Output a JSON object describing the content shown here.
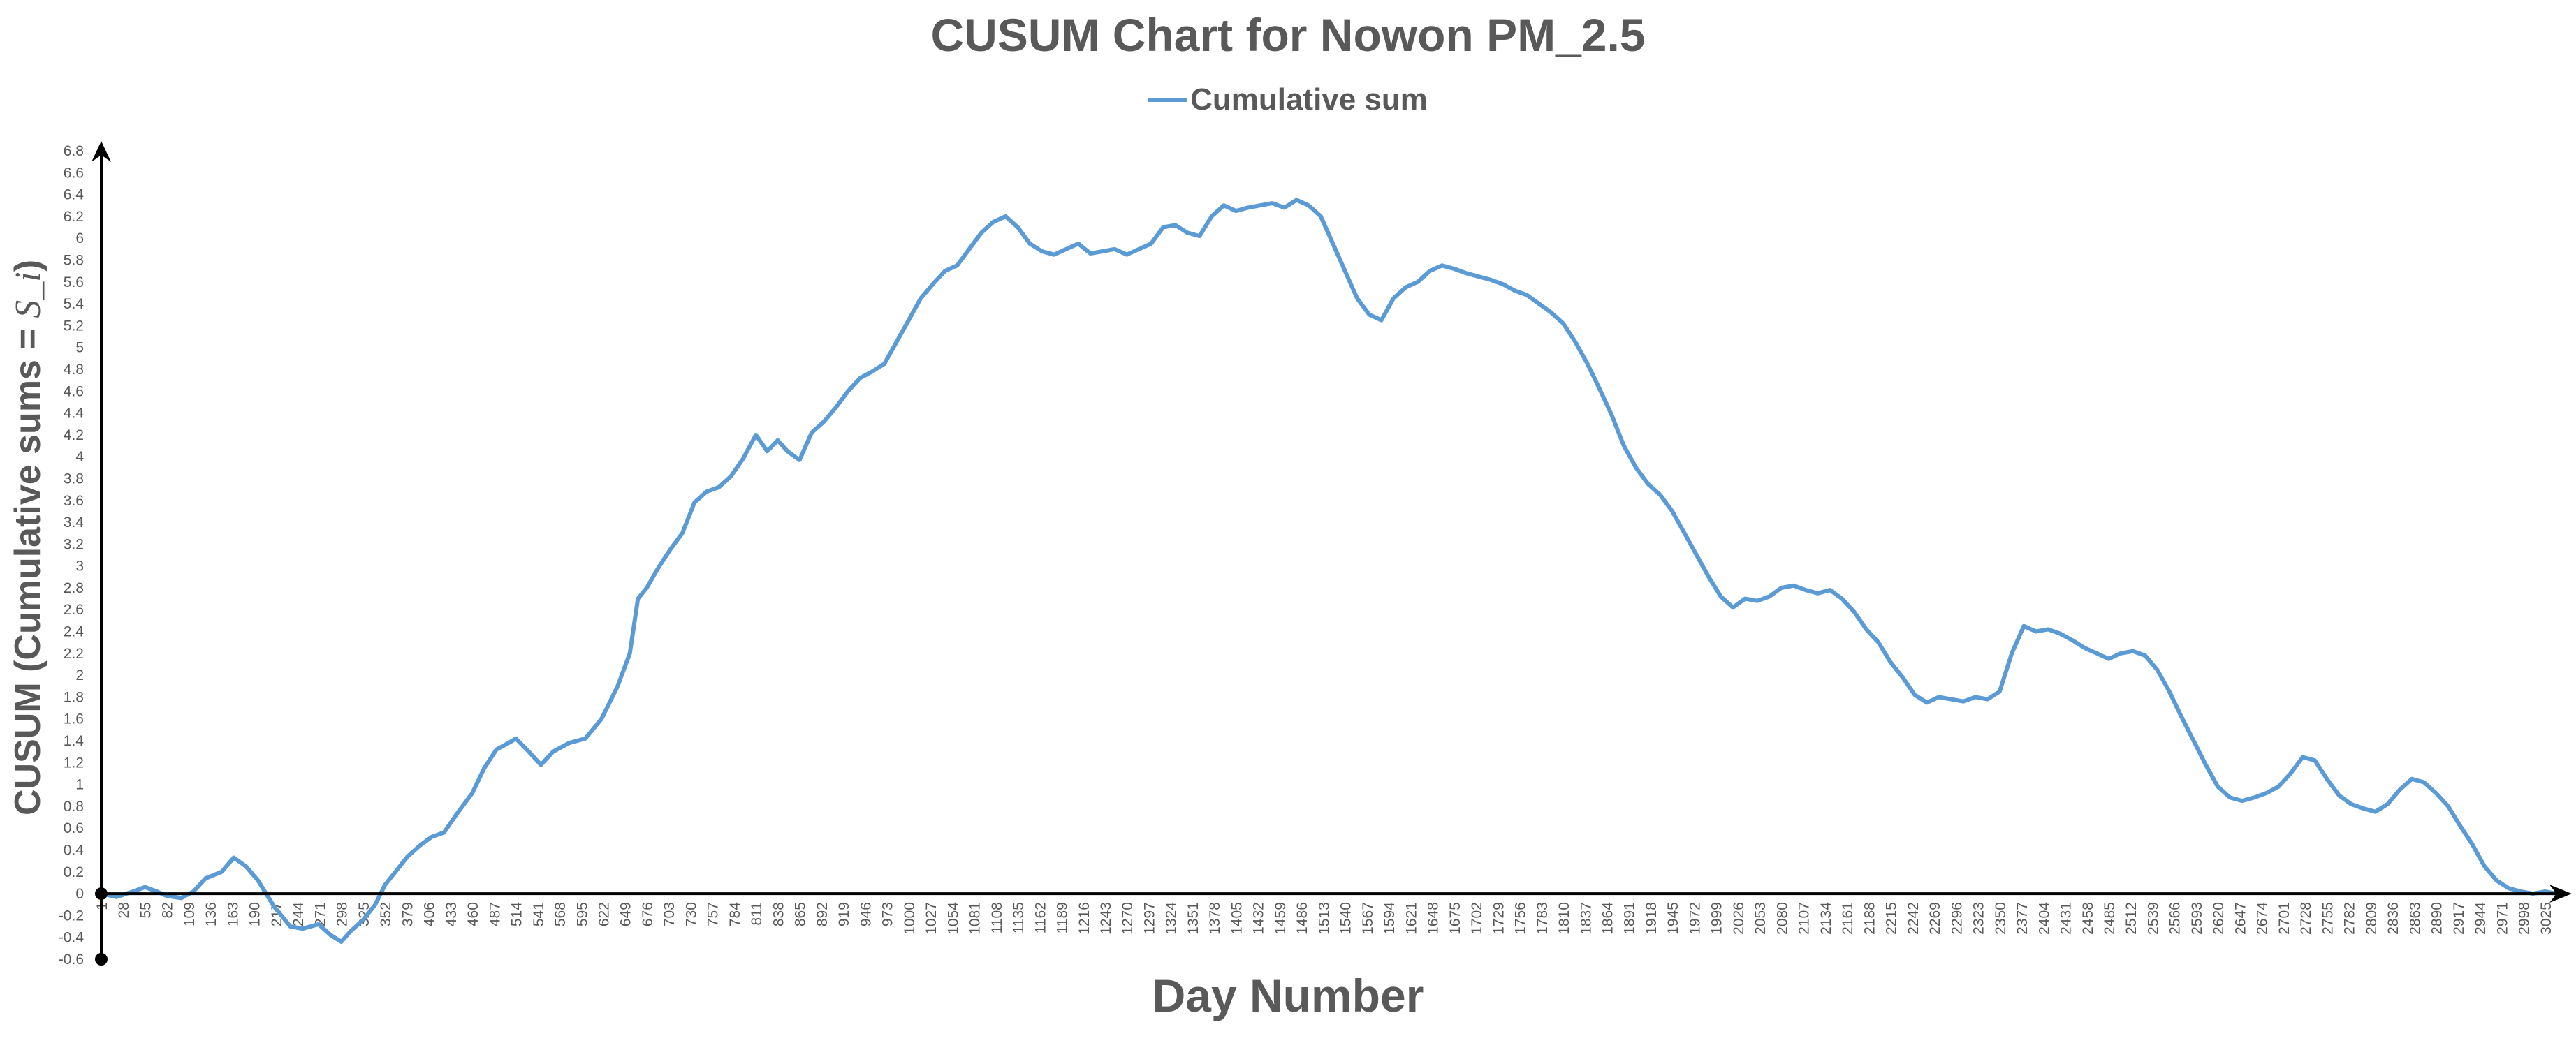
{
  "chart_data": {
    "type": "line",
    "title": "CUSUM Chart for Nowon PM_2.5",
    "xlabel": "Day Number",
    "ylabel": "CUSUM (Cumulative sums = S_i)",
    "ylabel_parts": {
      "prefix": "CUSUM (Cumulative sums = ",
      "var": "S",
      "sep": "_",
      "sub": "i",
      "suffix": ")"
    },
    "legend": "top-center",
    "grid": false,
    "xlim": [
      1,
      3039
    ],
    "ylim": [
      -0.6,
      6.8
    ],
    "x_ticks": [
      1,
      28,
      55,
      82,
      109,
      136,
      163,
      190,
      217,
      244,
      271,
      298,
      325,
      352,
      379,
      406,
      433,
      460,
      487,
      514,
      541,
      568,
      595,
      622,
      649,
      676,
      703,
      730,
      757,
      784,
      811,
      838,
      865,
      892,
      919,
      946,
      973,
      1000,
      1027,
      1054,
      1081,
      1108,
      1135,
      1162,
      1189,
      1216,
      1243,
      1270,
      1297,
      1324,
      1351,
      1378,
      1405,
      1432,
      1459,
      1486,
      1513,
      1540,
      1567,
      1594,
      1621,
      1648,
      1675,
      1702,
      1729,
      1756,
      1783,
      1810,
      1837,
      1864,
      1891,
      1918,
      1945,
      1972,
      1999,
      2026,
      2053,
      2080,
      2107,
      2134,
      2161,
      2188,
      2215,
      2242,
      2269,
      2296,
      2323,
      2350,
      2377,
      2404,
      2431,
      2458,
      2485,
      2512,
      2539,
      2566,
      2593,
      2620,
      2647,
      2674,
      2701,
      2728,
      2755,
      2782,
      2809,
      2836,
      2863,
      2890,
      2917,
      2944,
      2971,
      2998,
      3025
    ],
    "y_ticks": [
      -0.6,
      -0.4,
      -0.2,
      0,
      0.2,
      0.4,
      0.6,
      0.8,
      1,
      1.2,
      1.4,
      1.6,
      1.8,
      2,
      2.2,
      2.4,
      2.6,
      2.8,
      3,
      3.2,
      3.4,
      3.6,
      3.8,
      4,
      4.2,
      4.4,
      4.6,
      4.8,
      5,
      5.2,
      5.4,
      5.6,
      5.8,
      6,
      6.2,
      6.4,
      6.6,
      6.8
    ],
    "series": [
      {
        "name": "Cumulative sum",
        "color": "#5b9bd5",
        "x": [
          1,
          20,
          40,
          55,
          70,
          82,
          100,
          115,
          130,
          150,
          165,
          180,
          195,
          215,
          235,
          250,
          270,
          285,
          298,
          310,
          325,
          340,
          352,
          365,
          380,
          395,
          410,
          425,
          440,
          460,
          475,
          490,
          505,
          514,
          530,
          545,
          560,
          580,
          600,
          620,
          640,
          655,
          665,
          676,
          690,
          705,
          720,
          735,
          750,
          765,
          780,
          795,
          811,
          825,
          838,
          850,
          865,
          880,
          895,
          910,
          925,
          940,
          955,
          970,
          985,
          1000,
          1015,
          1030,
          1045,
          1060,
          1075,
          1090,
          1105,
          1120,
          1135,
          1150,
          1165,
          1180,
          1195,
          1210,
          1225,
          1240,
          1255,
          1270,
          1285,
          1300,
          1315,
          1330,
          1345,
          1360,
          1375,
          1390,
          1405,
          1420,
          1435,
          1450,
          1465,
          1480,
          1495,
          1510,
          1525,
          1540,
          1555,
          1570,
          1585,
          1600,
          1615,
          1630,
          1645,
          1660,
          1675,
          1690,
          1705,
          1720,
          1735,
          1750,
          1765,
          1780,
          1795,
          1810,
          1825,
          1840,
          1855,
          1870,
          1885,
          1900,
          1915,
          1930,
          1945,
          1960,
          1975,
          1990,
          2005,
          2020,
          2035,
          2050,
          2065,
          2080,
          2095,
          2110,
          2125,
          2140,
          2155,
          2170,
          2185,
          2200,
          2215,
          2230,
          2245,
          2260,
          2275,
          2290,
          2305,
          2320,
          2335,
          2350,
          2365,
          2380,
          2395,
          2410,
          2425,
          2440,
          2455,
          2470,
          2485,
          2500,
          2515,
          2530,
          2545,
          2560,
          2575,
          2590,
          2605,
          2620,
          2635,
          2650,
          2665,
          2680,
          2695,
          2710,
          2725,
          2740,
          2755,
          2770,
          2785,
          2800,
          2815,
          2830,
          2845,
          2860,
          2875,
          2890,
          2905,
          2920,
          2935,
          2950,
          2965,
          2980,
          2995,
          3010,
          3025,
          3039
        ],
        "values": [
          0,
          -0.03,
          0.02,
          0.06,
          0.02,
          -0.02,
          -0.04,
          0.02,
          0.14,
          0.2,
          0.33,
          0.25,
          0.12,
          -0.12,
          -0.3,
          -0.32,
          -0.28,
          -0.38,
          -0.44,
          -0.34,
          -0.24,
          -0.1,
          0.08,
          0.2,
          0.34,
          0.44,
          0.52,
          0.56,
          0.72,
          0.92,
          1.15,
          1.32,
          1.38,
          1.42,
          1.3,
          1.18,
          1.3,
          1.38,
          1.42,
          1.6,
          1.9,
          2.2,
          2.7,
          2.8,
          2.98,
          3.15,
          3.3,
          3.58,
          3.68,
          3.72,
          3.82,
          3.98,
          4.2,
          4.05,
          4.15,
          4.05,
          3.97,
          4.22,
          4.32,
          4.45,
          4.6,
          4.72,
          4.78,
          4.85,
          5.05,
          5.25,
          5.45,
          5.58,
          5.7,
          5.75,
          5.9,
          6.05,
          6.15,
          6.2,
          6.1,
          5.95,
          5.88,
          5.85,
          5.9,
          5.95,
          5.86,
          5.88,
          5.9,
          5.85,
          5.9,
          5.95,
          6.1,
          6.12,
          6.05,
          6.02,
          6.2,
          6.3,
          6.25,
          6.28,
          6.3,
          6.32,
          6.28,
          6.35,
          6.3,
          6.2,
          5.95,
          5.7,
          5.45,
          5.3,
          5.25,
          5.45,
          5.55,
          5.6,
          5.7,
          5.75,
          5.72,
          5.68,
          5.65,
          5.62,
          5.58,
          5.52,
          5.48,
          5.4,
          5.32,
          5.22,
          5.05,
          4.85,
          4.62,
          4.38,
          4.1,
          3.9,
          3.75,
          3.65,
          3.5,
          3.3,
          3.1,
          2.9,
          2.72,
          2.62,
          2.7,
          2.68,
          2.72,
          2.8,
          2.82,
          2.78,
          2.75,
          2.78,
          2.7,
          2.58,
          2.42,
          2.3,
          2.12,
          1.98,
          1.82,
          1.75,
          1.8,
          1.78,
          1.76,
          1.8,
          1.78,
          1.85,
          2.2,
          2.45,
          2.4,
          2.42,
          2.38,
          2.32,
          2.25,
          2.2,
          2.15,
          2.2,
          2.22,
          2.18,
          2.05,
          1.85,
          1.62,
          1.4,
          1.18,
          0.98,
          0.88,
          0.85,
          0.88,
          0.92,
          0.98,
          1.1,
          1.25,
          1.22,
          1.05,
          0.9,
          0.82,
          0.78,
          0.75,
          0.82,
          0.95,
          1.05,
          1.02,
          0.92,
          0.8,
          0.62,
          0.45,
          0.25,
          0.12,
          0.05,
          0.02,
          0.0,
          0.02,
          0.0
        ]
      }
    ]
  },
  "axis_color": "#000000"
}
